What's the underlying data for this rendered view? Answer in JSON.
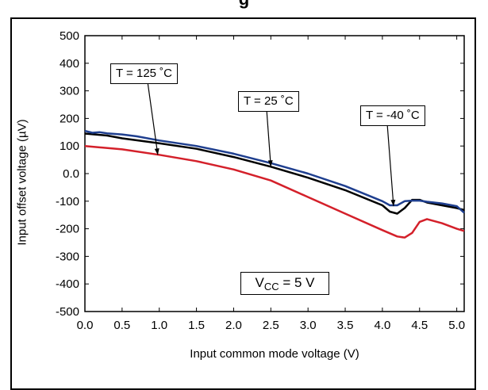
{
  "chart_data": {
    "type": "line",
    "title": "",
    "title_partial": "g",
    "xlabel": "Input common mode voltage (V)",
    "ylabel": "Input offset voltage (µV)",
    "xlim": [
      0.0,
      5.1
    ],
    "ylim": [
      -500,
      500
    ],
    "x_ticks": [
      "0.0",
      "0.5",
      "1.0",
      "1.5",
      "2.0",
      "2.5",
      "3.0",
      "3.5",
      "4.0",
      "4.5",
      "5.0"
    ],
    "y_ticks": [
      "500",
      "400",
      "300",
      "200",
      "100",
      "0.0",
      "-100",
      "-200",
      "-300",
      "-400",
      "-500"
    ],
    "grid": false,
    "annotations": [
      {
        "text": "T = 125 ˚C",
        "points_to_series": "T = 125 ˚C"
      },
      {
        "text": "T = 25 ˚C",
        "points_to_series": "T = 25 ˚C"
      },
      {
        "text": "T = -40 ˚C",
        "points_to_series": "T = -40 ˚C"
      }
    ],
    "condition_label": {
      "main": "V",
      "sub": "CC",
      "rest": " = 5 V"
    },
    "series": [
      {
        "name": "T = 125 ˚C",
        "color": "#d4202a",
        "x": [
          0.0,
          0.5,
          1.0,
          1.5,
          2.0,
          2.5,
          3.0,
          3.5,
          4.0,
          4.2,
          4.3,
          4.4,
          4.5,
          4.6,
          4.8,
          5.0,
          5.1
        ],
        "y": [
          100,
          88,
          68,
          45,
          15,
          -25,
          -85,
          -145,
          -205,
          -228,
          -232,
          -215,
          -175,
          -165,
          -180,
          -200,
          -208
        ]
      },
      {
        "name": "T = 25 ˚C",
        "color": "#000000",
        "x": [
          0.0,
          0.3,
          0.5,
          1.0,
          1.5,
          2.0,
          2.5,
          3.0,
          3.5,
          4.0,
          4.1,
          4.2,
          4.3,
          4.4,
          4.5,
          4.6,
          4.8,
          5.0,
          5.1
        ],
        "y": [
          145,
          138,
          128,
          110,
          90,
          60,
          25,
          -15,
          -60,
          -115,
          -138,
          -145,
          -125,
          -95,
          -95,
          -105,
          -115,
          -125,
          -132
        ]
      },
      {
        "name": "T = -40 ˚C",
        "color": "#1f3f8f",
        "x": [
          0.0,
          0.1,
          0.2,
          0.3,
          0.5,
          0.7,
          1.0,
          1.5,
          2.0,
          2.5,
          3.0,
          3.5,
          4.0,
          4.1,
          4.2,
          4.3,
          4.4,
          4.5,
          4.6,
          4.8,
          5.0,
          5.1
        ],
        "y": [
          155,
          148,
          150,
          146,
          142,
          135,
          120,
          100,
          72,
          38,
          0,
          -45,
          -100,
          -115,
          -115,
          -100,
          -98,
          -98,
          -102,
          -108,
          -118,
          -142
        ]
      }
    ]
  }
}
